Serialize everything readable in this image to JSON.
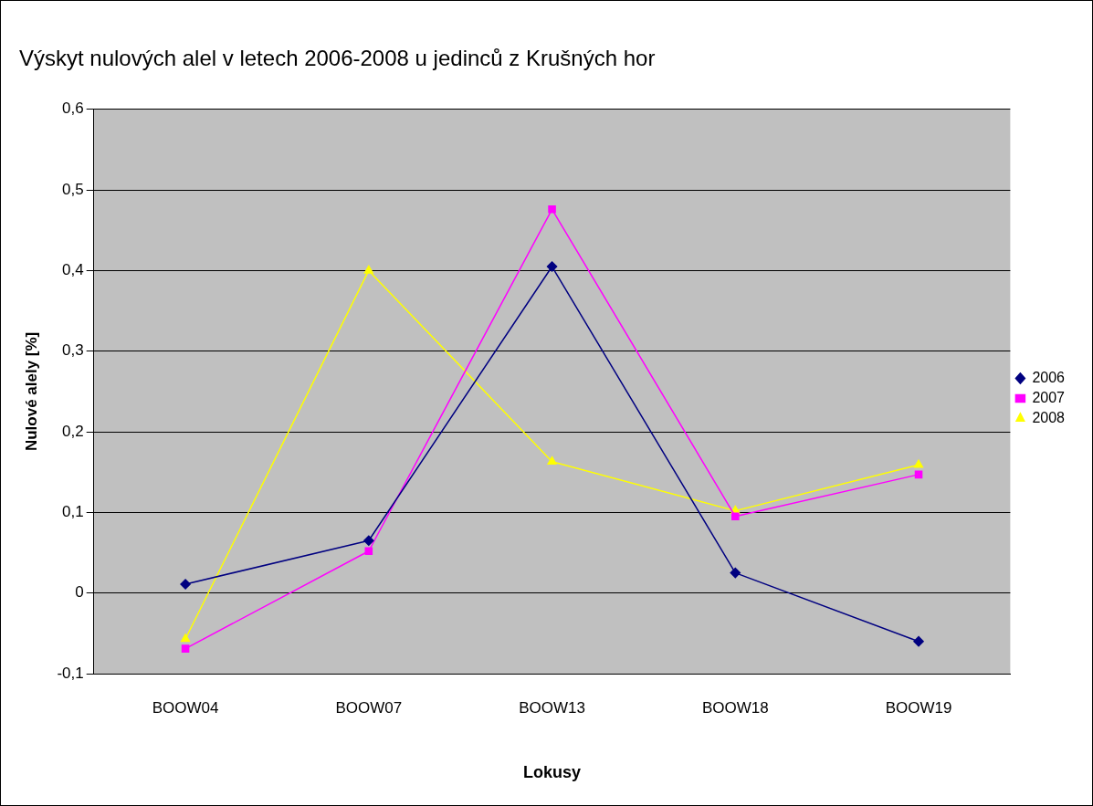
{
  "chart_data": {
    "type": "line",
    "title": "Výskyt nulových alel v letech 2006-2008 u jedinců z Krušných hor",
    "xlabel": "Lokusy",
    "ylabel": "Nulové alely [%]",
    "categories": [
      "BOOW04",
      "BOOW07",
      "BOOW13",
      "BOOW18",
      "BOOW19"
    ],
    "series": [
      {
        "name": "2006",
        "color": "#000080",
        "marker": "diamond",
        "values": [
          0.011,
          0.065,
          0.405,
          0.025,
          -0.06
        ]
      },
      {
        "name": "2007",
        "color": "#ff00ff",
        "marker": "square",
        "values": [
          -0.069,
          0.052,
          0.476,
          0.095,
          0.147
        ]
      },
      {
        "name": "2008",
        "color": "#ffff00",
        "marker": "triangle",
        "values": [
          -0.057,
          0.4,
          0.163,
          0.102,
          0.159
        ]
      }
    ],
    "ylim": [
      -0.1,
      0.6
    ],
    "yticks": [
      {
        "value": -0.1,
        "label": "-0,1"
      },
      0,
      {
        "value": 0.1,
        "label": "0,1"
      },
      {
        "value": 0.2,
        "label": "0,2"
      },
      {
        "value": 0.3,
        "label": "0,3"
      },
      {
        "value": 0.4,
        "label": "0,4"
      },
      {
        "value": 0.5,
        "label": "0,5"
      },
      {
        "value": 0.6,
        "label": "0,6"
      }
    ],
    "grid": "y",
    "legend": "right",
    "line_style": "solid"
  }
}
